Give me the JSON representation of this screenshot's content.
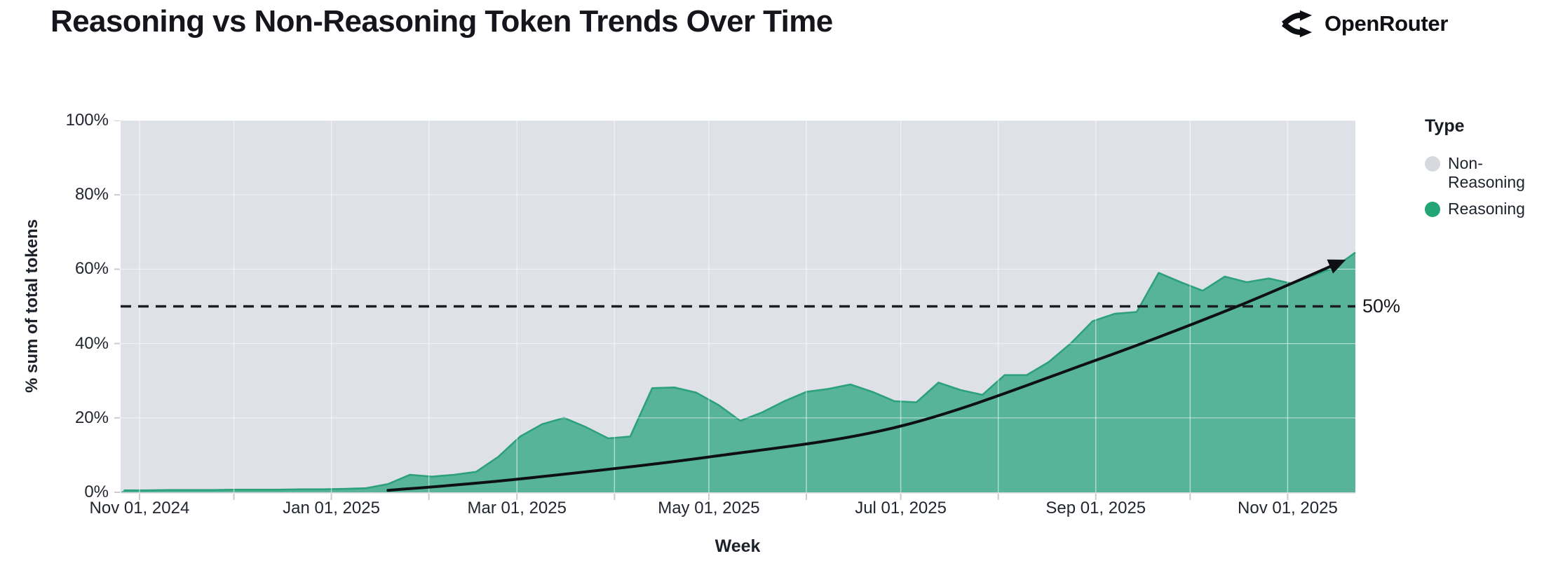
{
  "header": {
    "title": "Reasoning vs Non-Reasoning Token Trends Over Time",
    "brand": "OpenRouter"
  },
  "chart": {
    "y_axis_title": "% sum of total tokens",
    "x_axis_title": "Week",
    "reference_label": "50%",
    "legend": {
      "title": "Type",
      "items": [
        {
          "label": "Non-Reasoning",
          "color": "#d6d9de"
        },
        {
          "label": "Reasoning",
          "color": "#23a575"
        }
      ]
    }
  },
  "colors": {
    "plot_bg": "#dfe1e9",
    "area_fill": "#57b499",
    "area_stroke": "#2ca17b",
    "grid": "rgba(255,255,255,0.55)",
    "axis_line": "#d3d6dd",
    "tick": "#c8cbd2",
    "reference": "#1a1d23",
    "trend": "#0e1013",
    "text": "#22262f"
  },
  "chart_data": {
    "type": "area",
    "title": "Reasoning vs Non-Reasoning Token Trends Over Time",
    "xlabel": "Week",
    "ylabel": "% sum of total tokens",
    "ylim": [
      0,
      100
    ],
    "grid": true,
    "legend_position": "right",
    "stacking": "100% stacked; Non-Reasoning fills the remainder above Reasoning",
    "x_domain": [
      "2024-10-26",
      "2025-11-22"
    ],
    "y_ticks": {
      "values": [
        0,
        20,
        40,
        60,
        80,
        100
      ],
      "labels": [
        "0%",
        "20%",
        "40%",
        "60%",
        "80%",
        "100%"
      ]
    },
    "x_ticks": [
      {
        "date": "2024-11-01",
        "label": "Nov 01, 2024"
      },
      {
        "date": "2025-01-01",
        "label": "Jan 01, 2025"
      },
      {
        "date": "2025-03-01",
        "label": "Mar 01, 2025"
      },
      {
        "date": "2025-05-01",
        "label": "May 01, 2025"
      },
      {
        "date": "2025-07-01",
        "label": "Jul 01, 2025"
      },
      {
        "date": "2025-09-01",
        "label": "Sep 01, 2025"
      },
      {
        "date": "2025-11-01",
        "label": "Nov 01, 2025"
      }
    ],
    "month_gridlines": [
      "2024-11-01",
      "2024-12-01",
      "2025-01-01",
      "2025-02-01",
      "2025-03-01",
      "2025-04-01",
      "2025-05-01",
      "2025-06-01",
      "2025-07-01",
      "2025-08-01",
      "2025-09-01",
      "2025-10-01",
      "2025-11-01"
    ],
    "series": [
      {
        "name": "Reasoning",
        "color": "#57b499",
        "weeks": [
          "2024-10-27",
          "2024-11-03",
          "2024-11-10",
          "2024-11-17",
          "2024-11-24",
          "2024-12-01",
          "2024-12-08",
          "2024-12-15",
          "2024-12-22",
          "2024-12-29",
          "2025-01-05",
          "2025-01-12",
          "2025-01-19",
          "2025-01-26",
          "2025-02-02",
          "2025-02-09",
          "2025-02-16",
          "2025-02-23",
          "2025-03-02",
          "2025-03-09",
          "2025-03-16",
          "2025-03-23",
          "2025-03-30",
          "2025-04-06",
          "2025-04-13",
          "2025-04-20",
          "2025-04-27",
          "2025-05-04",
          "2025-05-11",
          "2025-05-18",
          "2025-05-25",
          "2025-06-01",
          "2025-06-08",
          "2025-06-15",
          "2025-06-22",
          "2025-06-29",
          "2025-07-06",
          "2025-07-13",
          "2025-07-20",
          "2025-07-27",
          "2025-08-03",
          "2025-08-10",
          "2025-08-17",
          "2025-08-24",
          "2025-08-31",
          "2025-09-07",
          "2025-09-14",
          "2025-09-21",
          "2025-09-28",
          "2025-10-05",
          "2025-10-12",
          "2025-10-19",
          "2025-10-26",
          "2025-11-02",
          "2025-11-09",
          "2025-11-16",
          "2025-11-23"
        ],
        "values_pct": [
          0.5,
          0.5,
          0.6,
          0.6,
          0.6,
          0.7,
          0.7,
          0.7,
          0.8,
          0.8,
          0.9,
          1.1,
          2.2,
          4.7,
          4.2,
          4.7,
          5.5,
          9.5,
          15,
          18.3,
          20,
          17.5,
          14.5,
          15,
          28,
          28.2,
          26.8,
          23.5,
          19.2,
          21.5,
          24.5,
          27,
          27.8,
          29,
          27,
          24.5,
          24.2,
          29.5,
          27.5,
          26.2,
          31.5,
          31.5,
          35,
          40,
          46,
          48,
          48.5,
          59,
          56.5,
          54.2,
          58,
          56.5,
          57.5,
          56.2,
          58.2,
          60.5,
          64.5
        ]
      },
      {
        "name": "Non-Reasoning",
        "color": "#dfe1e9",
        "values_pct": "100 minus Reasoning (remainder of 100% stack)"
      }
    ],
    "reference_line": {
      "value_pct": 50,
      "label": "50%",
      "style": "dashed"
    },
    "trend_arrow": {
      "description": "black exponential trend arrow from ~0% in mid-Jan 2025 to ~62% in mid-Nov 2025",
      "points": [
        {
          "date": "2025-01-19",
          "value_pct": 0.5
        },
        {
          "date": "2025-03-01",
          "value_pct": 3.5
        },
        {
          "date": "2025-05-01",
          "value_pct": 9.5
        },
        {
          "date": "2025-07-01",
          "value_pct": 17.8
        },
        {
          "date": "2025-09-01",
          "value_pct": 35.5
        },
        {
          "date": "2025-10-16",
          "value_pct": 50
        },
        {
          "date": "2025-11-18",
          "value_pct": 62
        }
      ]
    }
  }
}
